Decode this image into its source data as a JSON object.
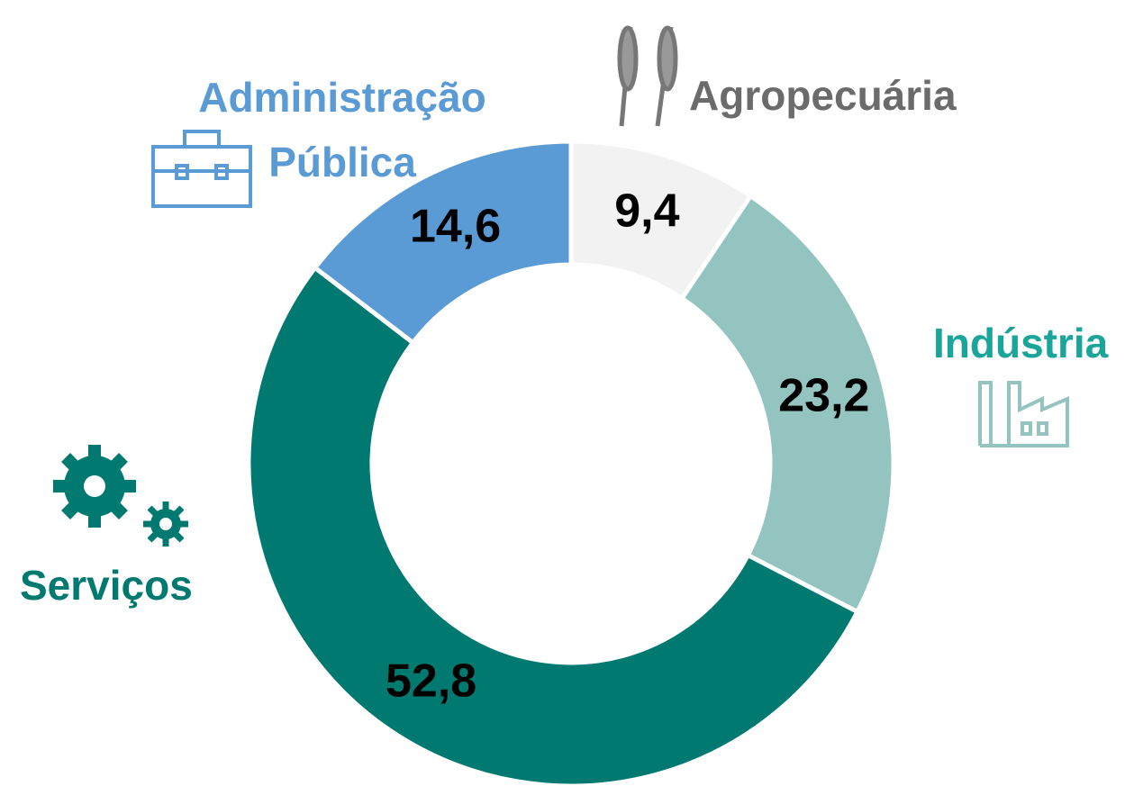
{
  "chart_data": {
    "type": "donut",
    "categories": [
      "Agropecuária",
      "Indústria",
      "Serviços",
      "Administração Pública"
    ],
    "values": [
      9.4,
      23.2,
      52.8,
      14.6
    ],
    "value_labels": [
      "9,4",
      "23,2",
      "52,8",
      "14,6"
    ],
    "colors": [
      "#f2f2f2",
      "#93c4c0",
      "#007a70",
      "#5b9bd5"
    ],
    "label_colors": [
      "#6b6b6b",
      "#1aa59a",
      "#007a70",
      "#5b9bd5"
    ]
  }
}
